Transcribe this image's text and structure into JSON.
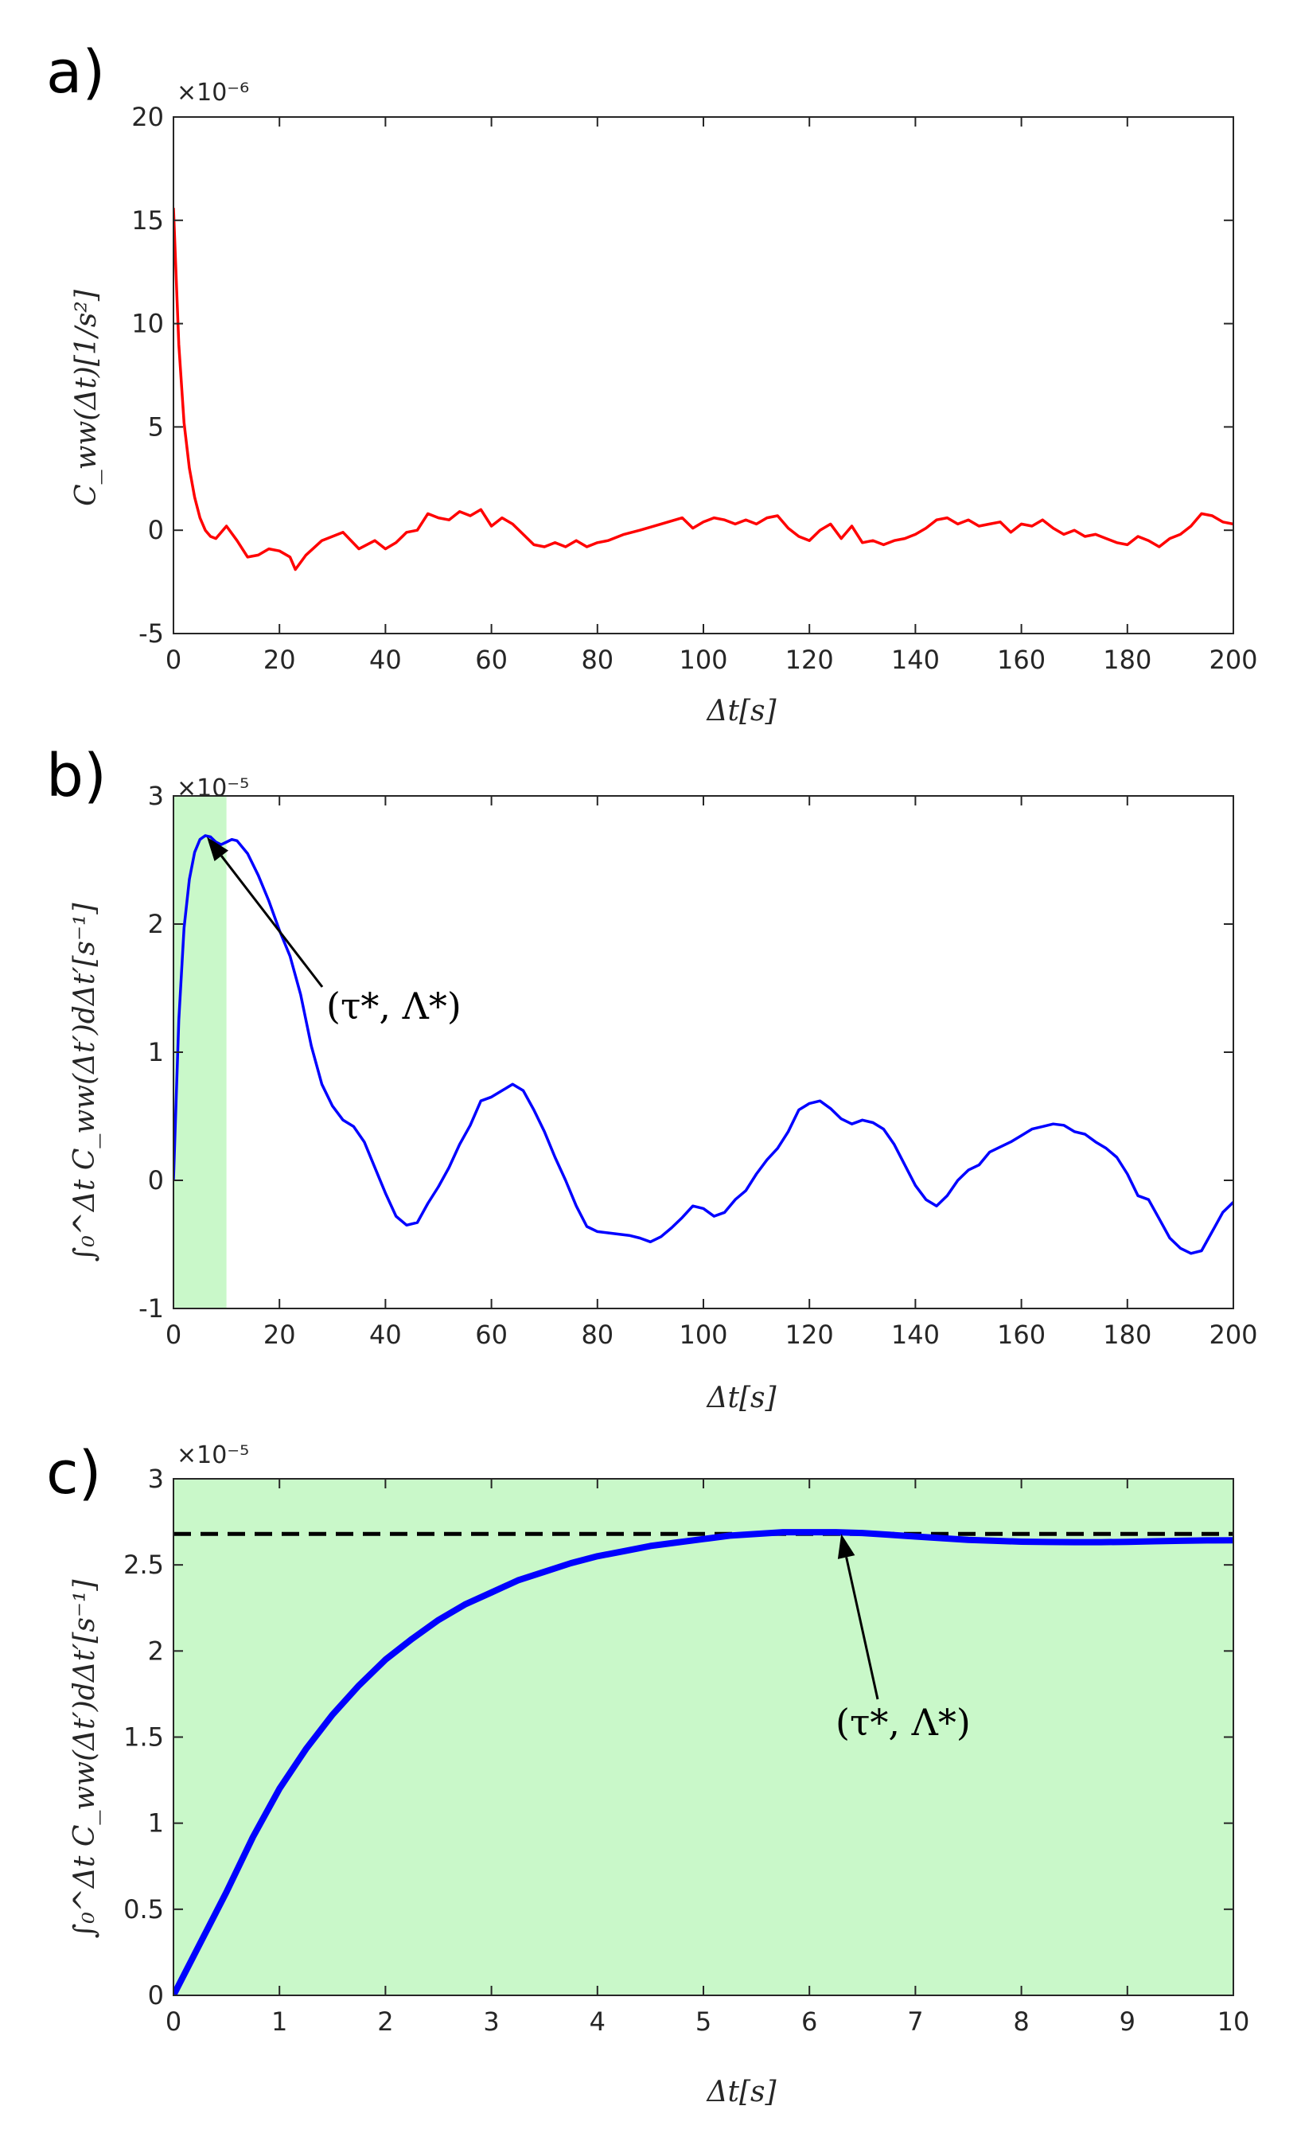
{
  "figure": {
    "panels_note": "three stacked panels a, b, c"
  },
  "chart_data": [
    {
      "panel_label": "a)",
      "type": "line",
      "title": "",
      "xlabel": "Δt[s]",
      "ylabel": "C_ww(Δt)[1/s²]",
      "xlim": [
        0,
        200
      ],
      "ylim": [
        -5,
        20
      ],
      "xticks": [
        0,
        20,
        40,
        60,
        80,
        100,
        120,
        140,
        160,
        180,
        200
      ],
      "xtick_labels": [
        "0",
        "20",
        "40",
        "60",
        "80",
        "100",
        "120",
        "140",
        "160",
        "180",
        "200"
      ],
      "yticks": [
        -5,
        0,
        5,
        10,
        15,
        20
      ],
      "ytick_labels": [
        "-5",
        "0",
        "5",
        "10",
        "15",
        "20"
      ],
      "y_exponent_label": "×10⁻⁶",
      "grid": false,
      "series": [
        {
          "name": "C_ww",
          "color": "#ff0000",
          "x": [
            0,
            1,
            2,
            3,
            4,
            5,
            6,
            7,
            8,
            10,
            12,
            14,
            16,
            18,
            20,
            22,
            23,
            25,
            28,
            32,
            35,
            38,
            40,
            42,
            44,
            46,
            48,
            50,
            52,
            54,
            56,
            58,
            60,
            62,
            64,
            66,
            68,
            70,
            72,
            74,
            76,
            78,
            80,
            82,
            85,
            88,
            92,
            96,
            98,
            100,
            102,
            104,
            106,
            108,
            110,
            112,
            114,
            116,
            118,
            120,
            122,
            124,
            126,
            128,
            130,
            132,
            134,
            136,
            138,
            140,
            142,
            144,
            146,
            148,
            150,
            152,
            154,
            156,
            158,
            160,
            162,
            164,
            166,
            168,
            170,
            172,
            174,
            176,
            178,
            180,
            182,
            184,
            186,
            188,
            190,
            192,
            194,
            196,
            198,
            200
          ],
          "y": [
            15.6,
            9.0,
            5.2,
            3.0,
            1.6,
            0.6,
            0.0,
            -0.3,
            -0.4,
            0.2,
            -0.5,
            -1.3,
            -1.2,
            -0.9,
            -1.0,
            -1.3,
            -1.9,
            -1.2,
            -0.5,
            -0.1,
            -0.9,
            -0.5,
            -0.9,
            -0.6,
            -0.1,
            0.0,
            0.8,
            0.6,
            0.5,
            0.9,
            0.7,
            1.0,
            0.2,
            0.6,
            0.3,
            -0.2,
            -0.7,
            -0.8,
            -0.6,
            -0.8,
            -0.5,
            -0.8,
            -0.6,
            -0.5,
            -0.2,
            0.0,
            0.3,
            0.6,
            0.1,
            0.4,
            0.6,
            0.5,
            0.3,
            0.5,
            0.3,
            0.6,
            0.7,
            0.1,
            -0.3,
            -0.5,
            0.0,
            0.3,
            -0.4,
            0.2,
            -0.6,
            -0.5,
            -0.7,
            -0.5,
            -0.4,
            -0.2,
            0.1,
            0.5,
            0.6,
            0.3,
            0.5,
            0.2,
            0.3,
            0.4,
            -0.1,
            0.3,
            0.2,
            0.5,
            0.1,
            -0.2,
            0.0,
            -0.3,
            -0.2,
            -0.4,
            -0.6,
            -0.7,
            -0.3,
            -0.5,
            -0.8,
            -0.4,
            -0.2,
            0.2,
            0.8,
            0.7,
            0.4,
            0.3
          ]
        }
      ]
    },
    {
      "panel_label": "b)",
      "type": "line",
      "title": "",
      "xlabel": "Δt[s]",
      "ylabel": "∫₀^Δt C_ww(Δt′)dΔt′[s⁻¹]",
      "xlim": [
        0,
        200
      ],
      "ylim": [
        -1,
        3
      ],
      "xticks": [
        0,
        20,
        40,
        60,
        80,
        100,
        120,
        140,
        160,
        180,
        200
      ],
      "xtick_labels": [
        "0",
        "20",
        "40",
        "60",
        "80",
        "100",
        "120",
        "140",
        "160",
        "180",
        "200"
      ],
      "yticks": [
        -1,
        0,
        1,
        2,
        3
      ],
      "ytick_labels": [
        "-1",
        "0",
        "1",
        "2",
        "3"
      ],
      "y_exponent_label": "×10⁻⁵",
      "grid": false,
      "shaded_region": {
        "x_range": [
          0,
          10
        ],
        "color": "#c9f8c9"
      },
      "annotation": {
        "text": "(τ*, Λ*)",
        "point": [
          6.3,
          2.68
        ]
      },
      "series": [
        {
          "name": "integral",
          "color": "#0000ff",
          "x": [
            0,
            1,
            2,
            3,
            4,
            5,
            6,
            7,
            8,
            9,
            10,
            11,
            12,
            14,
            16,
            18,
            20,
            22,
            24,
            26,
            28,
            30,
            32,
            34,
            36,
            38,
            40,
            42,
            44,
            46,
            48,
            50,
            52,
            54,
            56,
            58,
            60,
            62,
            64,
            66,
            68,
            70,
            72,
            74,
            76,
            78,
            80,
            82,
            84,
            86,
            88,
            90,
            92,
            94,
            96,
            98,
            100,
            102,
            104,
            106,
            108,
            110,
            112,
            114,
            116,
            118,
            120,
            122,
            124,
            126,
            128,
            130,
            132,
            134,
            136,
            138,
            140,
            142,
            144,
            146,
            148,
            150,
            152,
            154,
            156,
            158,
            160,
            162,
            164,
            166,
            168,
            170,
            172,
            174,
            176,
            178,
            180,
            182,
            184,
            186,
            188,
            190,
            192,
            194,
            196,
            198,
            200
          ],
          "y": [
            0,
            1.25,
            1.97,
            2.35,
            2.56,
            2.66,
            2.69,
            2.68,
            2.64,
            2.62,
            2.64,
            2.66,
            2.65,
            2.55,
            2.38,
            2.18,
            1.95,
            1.75,
            1.45,
            1.05,
            0.75,
            0.58,
            0.47,
            0.42,
            0.3,
            0.1,
            -0.1,
            -0.28,
            -0.35,
            -0.33,
            -0.18,
            -0.05,
            0.1,
            0.28,
            0.43,
            0.62,
            0.65,
            0.7,
            0.75,
            0.7,
            0.55,
            0.38,
            0.18,
            0.0,
            -0.2,
            -0.36,
            -0.4,
            -0.41,
            -0.42,
            -0.43,
            -0.45,
            -0.48,
            -0.44,
            -0.37,
            -0.29,
            -0.2,
            -0.22,
            -0.28,
            -0.25,
            -0.15,
            -0.08,
            0.05,
            0.16,
            0.25,
            0.38,
            0.55,
            0.6,
            0.62,
            0.56,
            0.48,
            0.44,
            0.47,
            0.45,
            0.4,
            0.28,
            0.12,
            -0.04,
            -0.15,
            -0.2,
            -0.12,
            0.0,
            0.08,
            0.12,
            0.22,
            0.26,
            0.3,
            0.35,
            0.4,
            0.42,
            0.44,
            0.43,
            0.38,
            0.36,
            0.3,
            0.25,
            0.18,
            0.05,
            -0.12,
            -0.15,
            -0.3,
            -0.45,
            -0.53,
            -0.57,
            -0.55,
            -0.4,
            -0.25,
            -0.17
          ]
        }
      ]
    },
    {
      "panel_label": "c)",
      "type": "line",
      "title": "",
      "xlabel": "Δt[s]",
      "ylabel": "∫₀^Δt C_ww(Δt′)dΔt′[s⁻¹]",
      "xlim": [
        0,
        10
      ],
      "ylim": [
        0,
        3
      ],
      "xticks": [
        0,
        1,
        2,
        3,
        4,
        5,
        6,
        7,
        8,
        9,
        10
      ],
      "xtick_labels": [
        "0",
        "1",
        "2",
        "3",
        "4",
        "5",
        "6",
        "7",
        "8",
        "9",
        "10"
      ],
      "yticks": [
        0,
        0.5,
        1,
        1.5,
        2,
        2.5,
        3
      ],
      "ytick_labels": [
        "0",
        "0.5",
        "1",
        "1.5",
        "2",
        "2.5",
        "3"
      ],
      "y_exponent_label": "×10⁻⁵",
      "grid": false,
      "background_color": "#c9f8c9",
      "hline": {
        "y": 2.68,
        "style": "dashed",
        "color": "#000000"
      },
      "annotation": {
        "text": "(τ*, Λ*)",
        "point": [
          6.3,
          2.68
        ]
      },
      "series": [
        {
          "name": "integral",
          "color": "#0000ff",
          "x": [
            0,
            0.25,
            0.5,
            0.75,
            1,
            1.25,
            1.5,
            1.75,
            2,
            2.25,
            2.5,
            2.75,
            3,
            3.25,
            3.5,
            3.75,
            4,
            4.25,
            4.5,
            4.75,
            5,
            5.25,
            5.5,
            5.75,
            6,
            6.25,
            6.5,
            6.75,
            7,
            7.25,
            7.5,
            7.75,
            8,
            8.25,
            8.5,
            8.75,
            9,
            9.25,
            9.5,
            9.75,
            10
          ],
          "y": [
            0,
            0.3,
            0.6,
            0.92,
            1.2,
            1.43,
            1.63,
            1.8,
            1.95,
            2.07,
            2.18,
            2.27,
            2.34,
            2.41,
            2.46,
            2.51,
            2.55,
            2.58,
            2.61,
            2.63,
            2.65,
            2.67,
            2.68,
            2.69,
            2.69,
            2.69,
            2.685,
            2.675,
            2.665,
            2.655,
            2.645,
            2.64,
            2.635,
            2.633,
            2.632,
            2.632,
            2.634,
            2.637,
            2.64,
            2.642,
            2.643
          ]
        }
      ]
    }
  ]
}
